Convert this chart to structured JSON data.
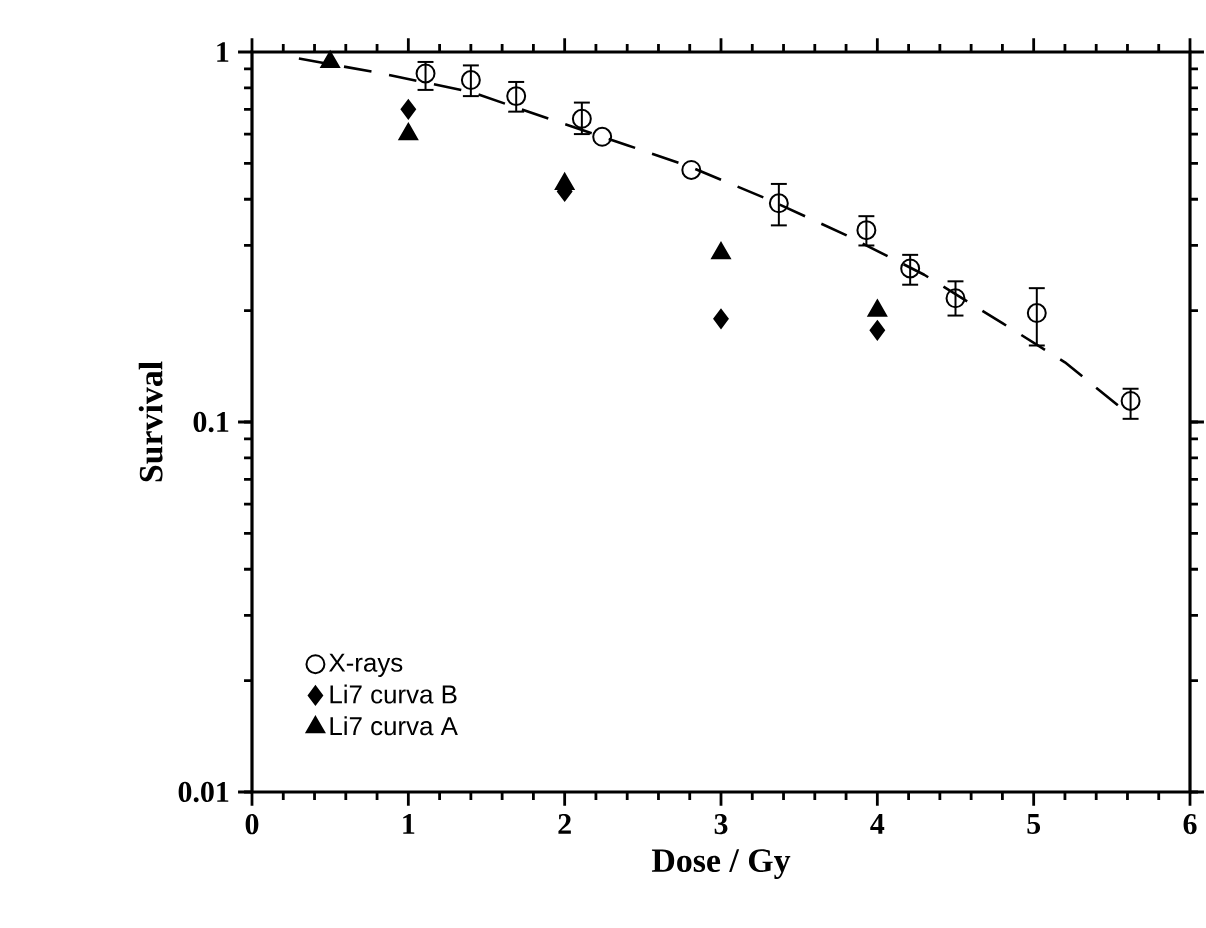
{
  "chart_data": {
    "type": "scatter",
    "xlabel": "Dose / Gy",
    "ylabel": "Survival",
    "log": "y",
    "xlim": [
      0,
      6
    ],
    "xticks": [
      0,
      1,
      2,
      3,
      4,
      5,
      6
    ],
    "ylim": [
      0.01,
      1
    ],
    "yticks": [
      0.01,
      0.1,
      1
    ],
    "legend": "bottom left",
    "grid": false,
    "series": [
      {
        "name": "X-rays",
        "color": "#000000",
        "marker": "circle",
        "x": [
          1.11,
          1.4,
          1.69,
          2.11,
          2.24,
          2.81,
          3.37,
          3.93,
          4.21,
          4.5,
          5.02,
          5.62
        ],
        "values": [
          0.875,
          0.84,
          0.76,
          0.66,
          0.59,
          0.48,
          0.39,
          0.33,
          0.26,
          0.216,
          0.197,
          0.114
        ],
        "errors": [
          [
            0.79,
            0.94
          ],
          [
            0.76,
            0.92
          ],
          [
            0.69,
            0.83
          ],
          [
            0.6,
            0.73
          ],
          null,
          null,
          [
            0.34,
            0.44
          ],
          [
            0.3,
            0.36
          ],
          [
            0.235,
            0.283
          ],
          [
            0.194,
            0.24
          ],
          [
            0.161,
            0.23
          ],
          [
            0.102,
            0.123
          ]
        ]
      },
      {
        "name": "Li7 curva B",
        "color": "#000000",
        "marker": "diamond",
        "x": [
          1,
          2,
          3,
          4
        ],
        "values": [
          0.7,
          0.42,
          0.19,
          0.177
        ]
      },
      {
        "name": "Li7 curva A",
        "color": "#000000",
        "marker": "triangle",
        "x": [
          0.5,
          1,
          2,
          3,
          4
        ],
        "values": [
          0.94,
          0.6,
          0.44,
          0.286,
          0.2
        ]
      },
      {
        "type": "line",
        "color": "#000000",
        "marker": "none",
        "line_style": "dashed",
        "x": [
          0.3,
          0.8,
          1.4,
          1.9,
          2.4,
          2.8,
          3.3,
          3.8,
          4.3,
          4.8,
          5.2,
          5.55
        ],
        "values": [
          0.96,
          0.88,
          0.78,
          0.66,
          0.56,
          0.49,
          0.4,
          0.32,
          0.25,
          0.185,
          0.145,
          0.11
        ]
      }
    ]
  }
}
